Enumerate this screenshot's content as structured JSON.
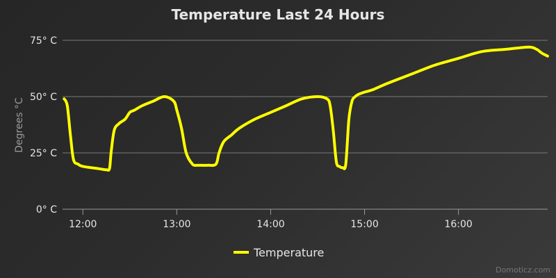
{
  "chart_data": {
    "type": "line",
    "title": "Temperature Last 24 Hours",
    "ylabel": "Degrees °C",
    "xlabel": "",
    "ylim": [
      0,
      75
    ],
    "y_ticks": [
      0,
      25,
      50,
      75
    ],
    "y_tick_labels": [
      "0° C",
      "25° C",
      "50° C",
      "75° C"
    ],
    "xlim": [
      "11:47",
      "16:57"
    ],
    "x_ticks": [
      "12:00",
      "13:00",
      "14:00",
      "15:00",
      "16:00"
    ],
    "grid": true,
    "legend": "bottom-center",
    "series": [
      {
        "name": "Temperature",
        "color": "#ffff00",
        "x": [
          "11:48",
          "11:50",
          "11:52",
          "11:54",
          "11:57",
          "12:00",
          "12:10",
          "12:15",
          "12:17",
          "12:18",
          "12:20",
          "12:23",
          "12:27",
          "12:30",
          "12:33",
          "12:38",
          "12:45",
          "12:52",
          "12:58",
          "13:00",
          "13:03",
          "13:06",
          "13:10",
          "13:13",
          "13:15",
          "13:20",
          "13:25",
          "13:27",
          "13:30",
          "13:35",
          "13:40",
          "13:50",
          "14:00",
          "14:10",
          "14:20",
          "14:30",
          "14:36",
          "14:38",
          "14:40",
          "14:42",
          "14:44",
          "14:46",
          "14:48",
          "14:50",
          "14:52",
          "14:54",
          "14:56",
          "15:00",
          "15:05",
          "15:15",
          "15:30",
          "15:45",
          "16:00",
          "16:15",
          "16:30",
          "16:45",
          "16:50",
          "16:52",
          "16:54",
          "16:57"
        ],
        "values": [
          49,
          46,
          33,
          22,
          20,
          19,
          18,
          17.5,
          18,
          25,
          35,
          38,
          40,
          43,
          44,
          46,
          48,
          50,
          48,
          44,
          36,
          25,
          20,
          19.5,
          19.5,
          19.5,
          20,
          25,
          30,
          33,
          36,
          40,
          43,
          46,
          49,
          50,
          49,
          46,
          35,
          21,
          19,
          18.5,
          20,
          40,
          48,
          50,
          51,
          52,
          53,
          56,
          60,
          64,
          67,
          70,
          71,
          72,
          71,
          70,
          69,
          68
        ]
      }
    ]
  },
  "credit": "Domoticz.com"
}
